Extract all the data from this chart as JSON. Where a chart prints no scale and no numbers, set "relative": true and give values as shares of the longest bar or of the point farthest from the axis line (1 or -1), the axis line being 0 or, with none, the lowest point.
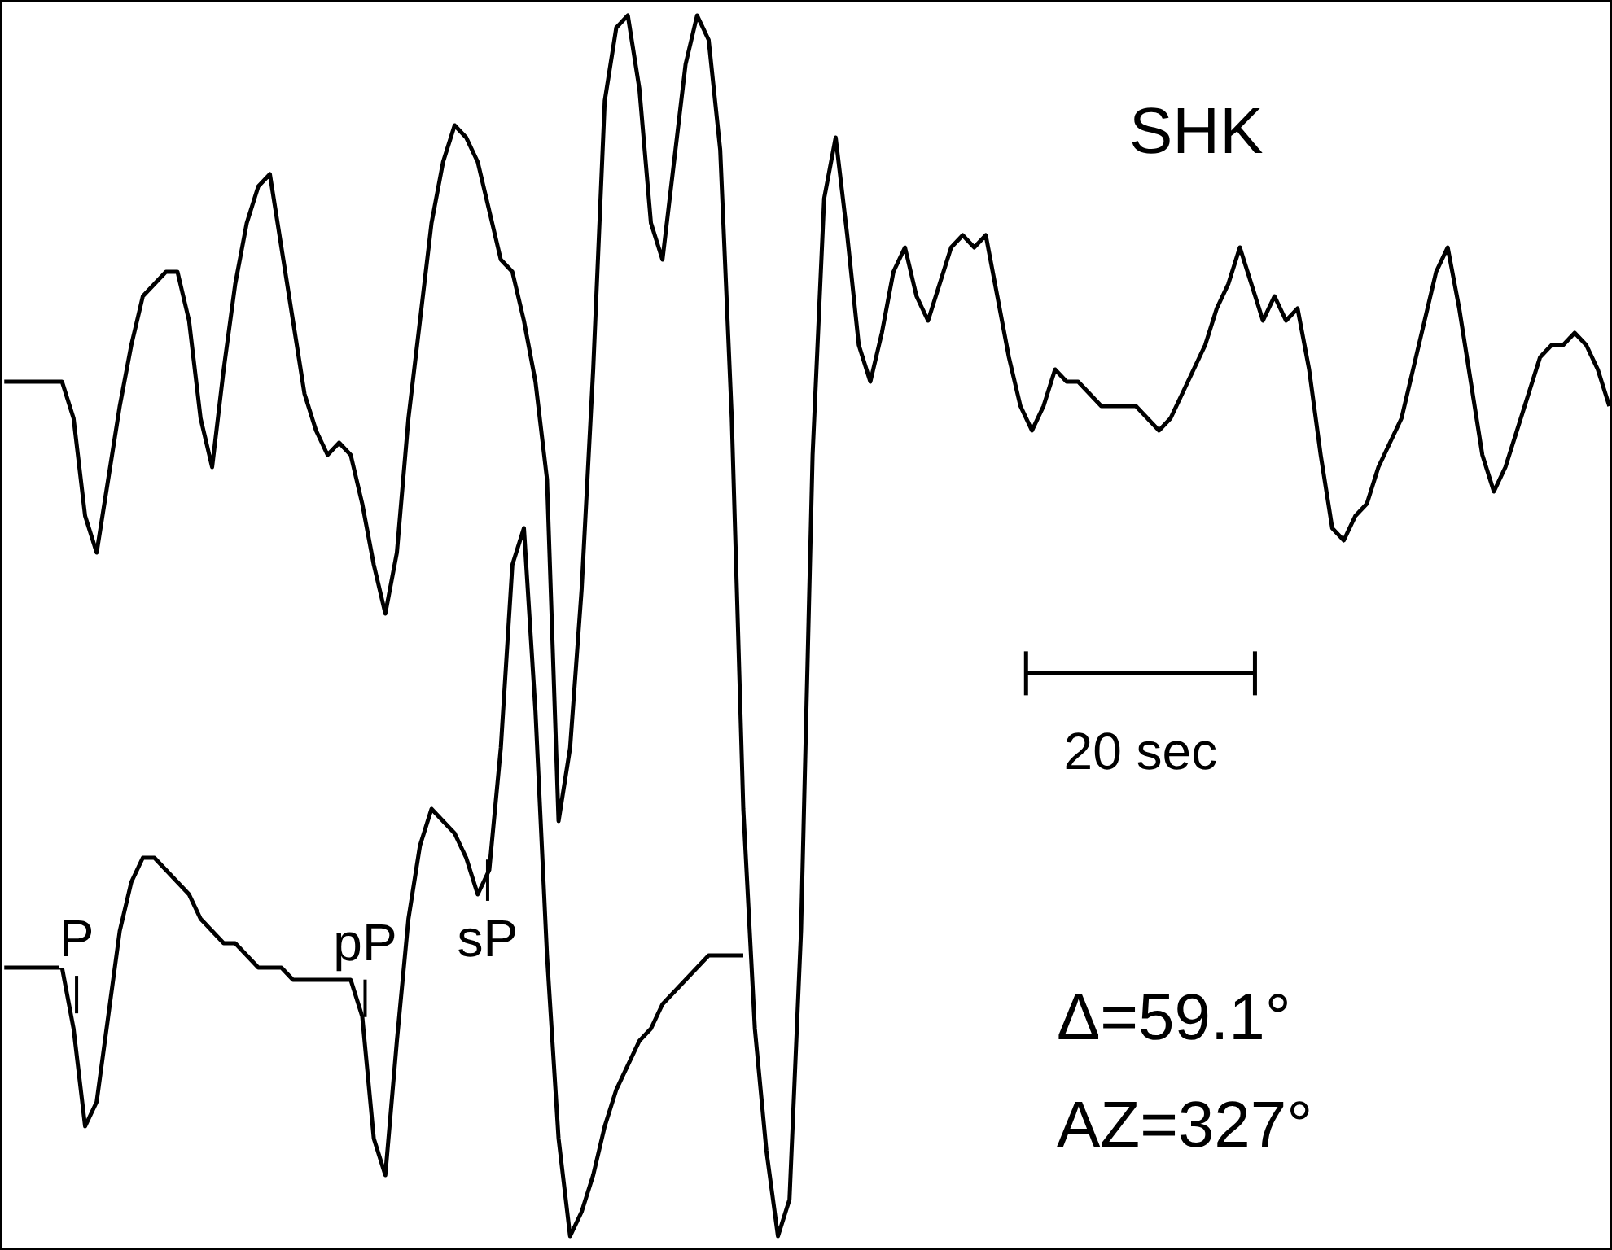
{
  "chart_data": {
    "type": "line",
    "relative": true,
    "grid": false,
    "marker": "none",
    "line_style": "solid",
    "categories": [
      null,
      null,
      null,
      null,
      null,
      null,
      null,
      null,
      null,
      null,
      null,
      null,
      null,
      null,
      null,
      null,
      null,
      null,
      null,
      null,
      null,
      null,
      null,
      null,
      null,
      null,
      null,
      null,
      null,
      null,
      null,
      null,
      null,
      null,
      null,
      null,
      null,
      null,
      null,
      null,
      null,
      null,
      null,
      null,
      null,
      null,
      null,
      null,
      null,
      null,
      null,
      null,
      null,
      null,
      null,
      null,
      null,
      null,
      null,
      null,
      null,
      null,
      null,
      null,
      null,
      null,
      null,
      null,
      null,
      null,
      null,
      null,
      null,
      null,
      null,
      null,
      null,
      null,
      null,
      null,
      null,
      null,
      null,
      null,
      null,
      null,
      null,
      null,
      null,
      null,
      null,
      null,
      null,
      null,
      null,
      null,
      null,
      null,
      null,
      null,
      null,
      null,
      null,
      null,
      null,
      null,
      null,
      null,
      null,
      null,
      null,
      null,
      null,
      null,
      null,
      null,
      null,
      null,
      null,
      null,
      null,
      null,
      null,
      null,
      null,
      null,
      null,
      null,
      null,
      null,
      null,
      null,
      null,
      null,
      null,
      null,
      null,
      null,
      null,
      null
    ],
    "series": [
      {
        "color": "#000000",
        "values": [
          0.7,
          0.7,
          0.7,
          0.7,
          0.7,
          0.7,
          0.67,
          0.59,
          0.56,
          0.62,
          0.68,
          0.73,
          0.77,
          0.78,
          0.79,
          0.79,
          0.75,
          0.67,
          0.63,
          0.71,
          0.78,
          0.83,
          0.86,
          0.87,
          0.81,
          0.75,
          0.69,
          0.66,
          0.64,
          0.65,
          0.64,
          0.6,
          0.55,
          0.51,
          0.56,
          0.67,
          0.75,
          0.83,
          0.88,
          0.91,
          0.9,
          0.88,
          0.84,
          0.8,
          0.79,
          0.75,
          0.7,
          0.62,
          0.34,
          0.4,
          0.53,
          0.71,
          0.93,
          0.99,
          1.0,
          0.94,
          0.83,
          0.8,
          0.88,
          0.96,
          1.0,
          0.98,
          0.89,
          0.67,
          0.35,
          0.17,
          0.07,
          0.0,
          0.03,
          0.25,
          0.64,
          0.85,
          0.9,
          0.82,
          0.73,
          0.7,
          0.74,
          0.79,
          0.81,
          0.77,
          0.75,
          0.78,
          0.81,
          0.82,
          0.81,
          0.82,
          0.77,
          0.72,
          0.68,
          0.66,
          0.68,
          0.71,
          0.7,
          0.7,
          0.69,
          0.68,
          0.68,
          0.68,
          0.68,
          0.67,
          0.66,
          0.67,
          0.69,
          0.71,
          0.73,
          0.76,
          0.78,
          0.81,
          0.78,
          0.75,
          0.77,
          0.75,
          0.76,
          0.71,
          0.64,
          0.58,
          0.57,
          0.59,
          0.6,
          0.63,
          0.65,
          0.67,
          0.71,
          0.75,
          0.79,
          0.81,
          0.76,
          0.7,
          0.64,
          0.61,
          0.63,
          0.66,
          0.69,
          0.72,
          0.73,
          0.73,
          0.74,
          0.73,
          0.71,
          0.68
        ]
      },
      {
        "color": "#000000",
        "values": [
          0.22,
          0.22,
          0.22,
          0.22,
          0.22,
          0.22,
          0.17,
          0.09,
          0.11,
          0.18,
          0.25,
          0.29,
          0.31,
          0.31,
          0.3,
          0.29,
          0.28,
          0.26,
          0.25,
          0.24,
          0.24,
          0.23,
          0.22,
          0.22,
          0.22,
          0.21,
          0.21,
          0.21,
          0.21,
          0.21,
          0.21,
          0.18,
          0.08,
          0.05,
          0.16,
          0.26,
          0.32,
          0.35,
          0.34,
          0.33,
          0.31,
          0.28,
          0.3,
          0.4,
          0.55,
          0.58,
          0.43,
          0.23,
          0.08,
          0.0,
          0.02,
          0.05,
          0.09,
          0.12,
          0.14,
          0.16,
          0.17,
          0.19,
          0.2,
          0.21,
          0.22,
          0.23,
          0.23,
          0.23,
          0.23,
          null,
          null,
          null,
          null,
          null,
          null,
          null,
          null,
          null,
          null,
          null,
          null,
          null,
          null,
          null,
          null,
          null,
          null,
          null,
          null,
          null,
          null,
          null,
          null,
          null,
          null,
          null,
          null,
          null,
          null,
          null,
          null,
          null,
          null,
          null,
          null,
          null,
          null,
          null,
          null,
          null,
          null,
          null,
          null,
          null,
          null,
          null,
          null,
          null,
          null,
          null,
          null,
          null,
          null,
          null,
          null,
          null,
          null,
          null,
          null,
          null,
          null,
          null,
          null,
          null,
          null,
          null,
          null,
          null,
          null,
          null,
          null,
          null,
          null,
          null
        ]
      }
    ],
    "annotations": [
      "SHK",
      "20 sec",
      "Δ=59.1°",
      "AZ=327°",
      "P",
      "pP",
      "sP"
    ]
  }
}
